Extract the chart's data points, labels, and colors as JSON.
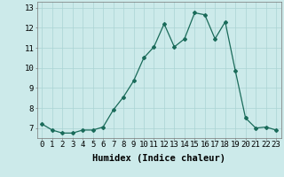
{
  "x": [
    0,
    1,
    2,
    3,
    4,
    5,
    6,
    7,
    8,
    9,
    10,
    11,
    12,
    13,
    14,
    15,
    16,
    17,
    18,
    19,
    20,
    21,
    22,
    23
  ],
  "y": [
    7.2,
    6.9,
    6.75,
    6.75,
    6.9,
    6.9,
    7.05,
    7.9,
    8.55,
    9.35,
    10.5,
    11.05,
    12.2,
    11.05,
    11.45,
    12.75,
    12.65,
    11.45,
    12.3,
    9.85,
    7.5,
    7.0,
    7.05,
    6.9
  ],
  "line_color": "#1a6b5a",
  "marker": "D",
  "marker_size": 2.0,
  "bg_color": "#cceaea",
  "grid_color": "#aad4d4",
  "xlabel": "Humidex (Indice chaleur)",
  "ylim": [
    6.5,
    13.3
  ],
  "xlim": [
    -0.5,
    23.5
  ],
  "yticks": [
    7,
    8,
    9,
    10,
    11,
    12,
    13
  ],
  "xticks": [
    0,
    1,
    2,
    3,
    4,
    5,
    6,
    7,
    8,
    9,
    10,
    11,
    12,
    13,
    14,
    15,
    16,
    17,
    18,
    19,
    20,
    21,
    22,
    23
  ],
  "xlabel_fontsize": 7.5,
  "tick_fontsize": 6.5
}
